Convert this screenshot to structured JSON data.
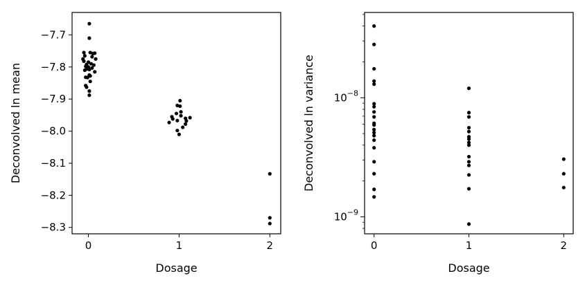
{
  "chart_data": [
    {
      "type": "scatter",
      "xlabel": "Dosage",
      "ylabel": "Deconvolved ln mean",
      "xticks": [
        "0",
        "1",
        "2"
      ],
      "yticks": [
        "−7.7",
        "−7.8",
        "−7.9",
        "−8.0",
        "−8.1",
        "−8.2",
        "−8.3"
      ],
      "xlim": [
        -0.18,
        2.12
      ],
      "ylim": [
        -8.32,
        -7.63
      ],
      "marker_color": "#000000",
      "points": [
        [
          0.01,
          -7.665
        ],
        [
          0.01,
          -7.71
        ],
        [
          -0.05,
          -7.755
        ],
        [
          0.02,
          -7.755
        ],
        [
          0.05,
          -7.758
        ],
        [
          0.07,
          -7.757
        ],
        [
          -0.04,
          -7.765
        ],
        [
          0.04,
          -7.768
        ],
        [
          -0.06,
          -7.775
        ],
        [
          0.08,
          -7.775
        ],
        [
          -0.05,
          -7.782
        ],
        [
          0.0,
          -7.785
        ],
        [
          0.03,
          -7.79
        ],
        [
          -0.02,
          -7.792
        ],
        [
          0.06,
          -7.794
        ],
        [
          -0.03,
          -7.798
        ],
        [
          0.0,
          -7.8
        ],
        [
          0.04,
          -7.803
        ],
        [
          -0.02,
          -7.806
        ],
        [
          0.01,
          -7.808
        ],
        [
          -0.04,
          -7.81
        ],
        [
          0.07,
          -7.815
        ],
        [
          0.01,
          -7.825
        ],
        [
          0.02,
          -7.828
        ],
        [
          -0.03,
          -7.832
        ],
        [
          -0.01,
          -7.833
        ],
        [
          0.02,
          -7.845
        ],
        [
          -0.03,
          -7.858
        ],
        [
          -0.02,
          -7.863
        ],
        [
          0.01,
          -7.875
        ],
        [
          0.01,
          -7.888
        ],
        [
          1.01,
          -7.905
        ],
        [
          0.98,
          -7.92
        ],
        [
          1.01,
          -7.922
        ],
        [
          1.02,
          -7.94
        ],
        [
          0.97,
          -7.945
        ],
        [
          1.02,
          -7.952
        ],
        [
          0.92,
          -7.955
        ],
        [
          0.93,
          -7.962
        ],
        [
          1.07,
          -7.96
        ],
        [
          1.12,
          -7.958
        ],
        [
          0.98,
          -7.967
        ],
        [
          1.08,
          -7.968
        ],
        [
          0.89,
          -7.973
        ],
        [
          1.07,
          -7.978
        ],
        [
          1.04,
          -7.988
        ],
        [
          0.98,
          -7.998
        ],
        [
          1.0,
          -8.01
        ],
        [
          2.0,
          -8.133
        ],
        [
          2.0,
          -8.27
        ],
        [
          2.0,
          -8.288
        ]
      ]
    },
    {
      "type": "scatter",
      "xlabel": "Dosage",
      "ylabel": "Deconvolved ln variance",
      "yscale": "log",
      "xticks": [
        "0",
        "1",
        "2"
      ],
      "yticks": [
        {
          "base": "10",
          "exp": "−8",
          "value": 1e-08
        },
        {
          "base": "10",
          "exp": "−9",
          "value": 1e-09
        }
      ],
      "xlim": [
        -0.1,
        2.1
      ],
      "ylim": [
        7.2e-10,
        5.2e-08
      ],
      "marker_color": "#000000",
      "points": [
        [
          0,
          4e-08
        ],
        [
          0,
          2.8e-08
        ],
        [
          0,
          1.75e-08
        ],
        [
          0,
          1.38e-08
        ],
        [
          0,
          1.3e-08
        ],
        [
          0,
          8.9e-09
        ],
        [
          0,
          8.4e-09
        ],
        [
          0,
          7.6e-09
        ],
        [
          0,
          6.9e-09
        ],
        [
          0,
          6.1e-09
        ],
        [
          0,
          5.9e-09
        ],
        [
          0,
          5.4e-09
        ],
        [
          0,
          5.1e-09
        ],
        [
          0,
          4.8e-09
        ],
        [
          0,
          4.4e-09
        ],
        [
          0,
          3.8e-09
        ],
        [
          0,
          2.9e-09
        ],
        [
          0,
          2.3e-09
        ],
        [
          0,
          1.7e-09
        ],
        [
          0,
          1.47e-09
        ],
        [
          1,
          1.2e-08
        ],
        [
          1,
          7.5e-09
        ],
        [
          1,
          6.9e-09
        ],
        [
          1,
          5.6e-09
        ],
        [
          1,
          5.2e-09
        ],
        [
          1,
          4.7e-09
        ],
        [
          1,
          4.5e-09
        ],
        [
          1,
          4.2e-09
        ],
        [
          1,
          4e-09
        ],
        [
          1,
          3.2e-09
        ],
        [
          1,
          2.9e-09
        ],
        [
          1,
          2.7e-09
        ],
        [
          1,
          2.25e-09
        ],
        [
          1,
          1.72e-09
        ],
        [
          1,
          8.7e-10
        ],
        [
          2,
          3.05e-09
        ],
        [
          2,
          2.3e-09
        ],
        [
          2,
          1.76e-09
        ]
      ]
    }
  ]
}
